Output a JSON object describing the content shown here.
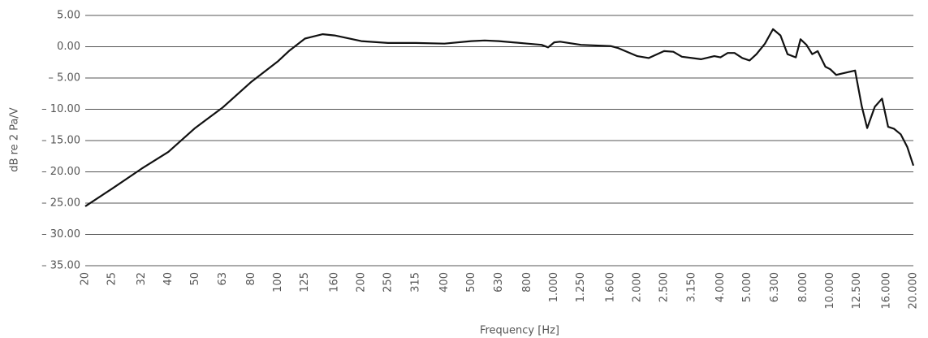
{
  "chart_data": {
    "type": "line",
    "y_label": "dB re 2 Pa/V",
    "x_label": "Frequency [Hz]",
    "xscale": "log",
    "grid": true,
    "xlim": [
      20,
      20000
    ],
    "xticks": [
      20,
      25,
      32,
      40,
      50,
      63,
      80,
      100,
      125,
      160,
      200,
      250,
      315,
      400,
      500,
      630,
      800,
      {
        "value": 1000,
        "label": "1.000"
      },
      {
        "value": 1250,
        "label": "1.250"
      },
      {
        "value": 1600,
        "label": "1.600"
      },
      {
        "value": 2000,
        "label": "2.000"
      },
      {
        "value": 2500,
        "label": "2.500"
      },
      {
        "value": 3150,
        "label": "3.150"
      },
      {
        "value": 4000,
        "label": "4.000"
      },
      {
        "value": 5000,
        "label": "5.000"
      },
      {
        "value": 6300,
        "label": "6.300"
      },
      {
        "value": 8000,
        "label": "8.000"
      },
      {
        "value": 10000,
        "label": "10.000"
      },
      {
        "value": 12500,
        "label": "12.500"
      },
      {
        "value": 16000,
        "label": "16.000"
      },
      {
        "value": 20000,
        "label": "20.000"
      }
    ],
    "ylim": [
      -35,
      5
    ],
    "yticks": [
      {
        "value": 5,
        "label": "5.00"
      },
      {
        "value": 0,
        "label": "0.00"
      },
      {
        "value": -5,
        "label": "– 5.00"
      },
      {
        "value": -10,
        "label": "– 10.00"
      },
      {
        "value": -15,
        "label": "– 15.00"
      },
      {
        "value": -20,
        "label": "– 20.00"
      },
      {
        "value": -25,
        "label": "– 25.00"
      },
      {
        "value": -30,
        "label": "– 30.00"
      },
      {
        "value": -35,
        "label": "– 35.00"
      }
    ],
    "x": [
      20,
      25,
      32,
      40,
      50,
      63,
      80,
      100,
      110,
      125,
      145,
      160,
      200,
      250,
      315,
      400,
      500,
      560,
      630,
      800,
      900,
      950,
      1000,
      1050,
      1250,
      1600,
      1700,
      2000,
      2200,
      2500,
      2700,
      2900,
      3150,
      3400,
      3800,
      4000,
      4250,
      4500,
      4800,
      5100,
      5400,
      5800,
      6200,
      6600,
      7000,
      7500,
      7800,
      8200,
      8600,
      9000,
      9600,
      10000,
      10500,
      11500,
      12300,
      13000,
      13600,
      14500,
      15400,
      16200,
      17000,
      18000,
      19000,
      20000
    ],
    "series": [
      {
        "color": "#111111",
        "values": [
          -25.5,
          -22.7,
          -19.5,
          -16.8,
          -13,
          -9.7,
          -5.6,
          -2.3,
          -0.6,
          1.3,
          2.0,
          1.8,
          0.9,
          0.6,
          0.6,
          0.5,
          0.9,
          1.0,
          0.9,
          0.5,
          0.3,
          -0.1,
          0.7,
          0.8,
          0.3,
          0.1,
          -0.2,
          -1.5,
          -1.8,
          -0.7,
          -0.8,
          -1.6,
          -1.8,
          -2.0,
          -1.5,
          -1.7,
          -1.0,
          -1.0,
          -1.8,
          -2.2,
          -1.2,
          0.5,
          2.8,
          1.8,
          -1.2,
          -1.7,
          1.2,
          0.3,
          -1.2,
          -0.7,
          -3.2,
          -3.6,
          -4.5,
          -4.1,
          -3.8,
          -9.5,
          -13.0,
          -9.6,
          -8.3,
          -12.8,
          -13.1,
          -14.0,
          -16.0,
          -19.0
        ]
      }
    ]
  }
}
